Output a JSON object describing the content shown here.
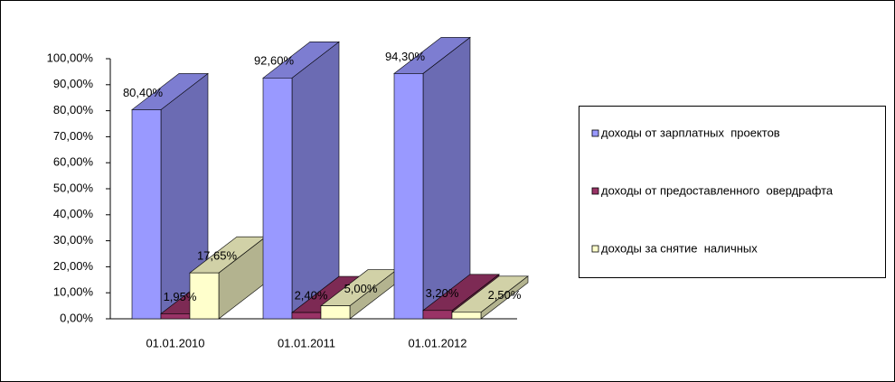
{
  "chart_data": {
    "type": "bar3d",
    "categories": [
      "01.01.2010",
      "01.01.2011",
      "01.01.2012"
    ],
    "series": [
      {
        "name": "доходы от зарплатных  проектов",
        "color": "#9999ff",
        "values": [
          80.4,
          92.6,
          94.3
        ],
        "value_labels": [
          "80,40%",
          "92,60%",
          "94,30%"
        ]
      },
      {
        "name": "доходы от предоставленного  овердрафта",
        "color": "#993366",
        "values": [
          1.95,
          2.4,
          3.2
        ],
        "value_labels": [
          "1,95%",
          "2,40%",
          "3,20%"
        ]
      },
      {
        "name": "доходы за снятие  наличных",
        "color": "#ffffcc",
        "values": [
          17.65,
          5.0,
          2.5
        ],
        "value_labels": [
          "17,65%",
          "5,00%",
          "2,50%"
        ]
      }
    ],
    "ylim": [
      0,
      100
    ],
    "yticks": [
      {
        "value": 0,
        "label": "0,00%"
      },
      {
        "value": 10,
        "label": "10,00%"
      },
      {
        "value": 20,
        "label": "20,00%"
      },
      {
        "value": 30,
        "label": "30,00%"
      },
      {
        "value": 40,
        "label": "40,00%"
      },
      {
        "value": 50,
        "label": "50,00%"
      },
      {
        "value": 60,
        "label": "60,00%"
      },
      {
        "value": 70,
        "label": "70,00%"
      },
      {
        "value": 80,
        "label": "80,00%"
      },
      {
        "value": 90,
        "label": "90,00%"
      },
      {
        "value": 100,
        "label": "100,00%"
      }
    ],
    "legend": "right",
    "grid": false
  }
}
